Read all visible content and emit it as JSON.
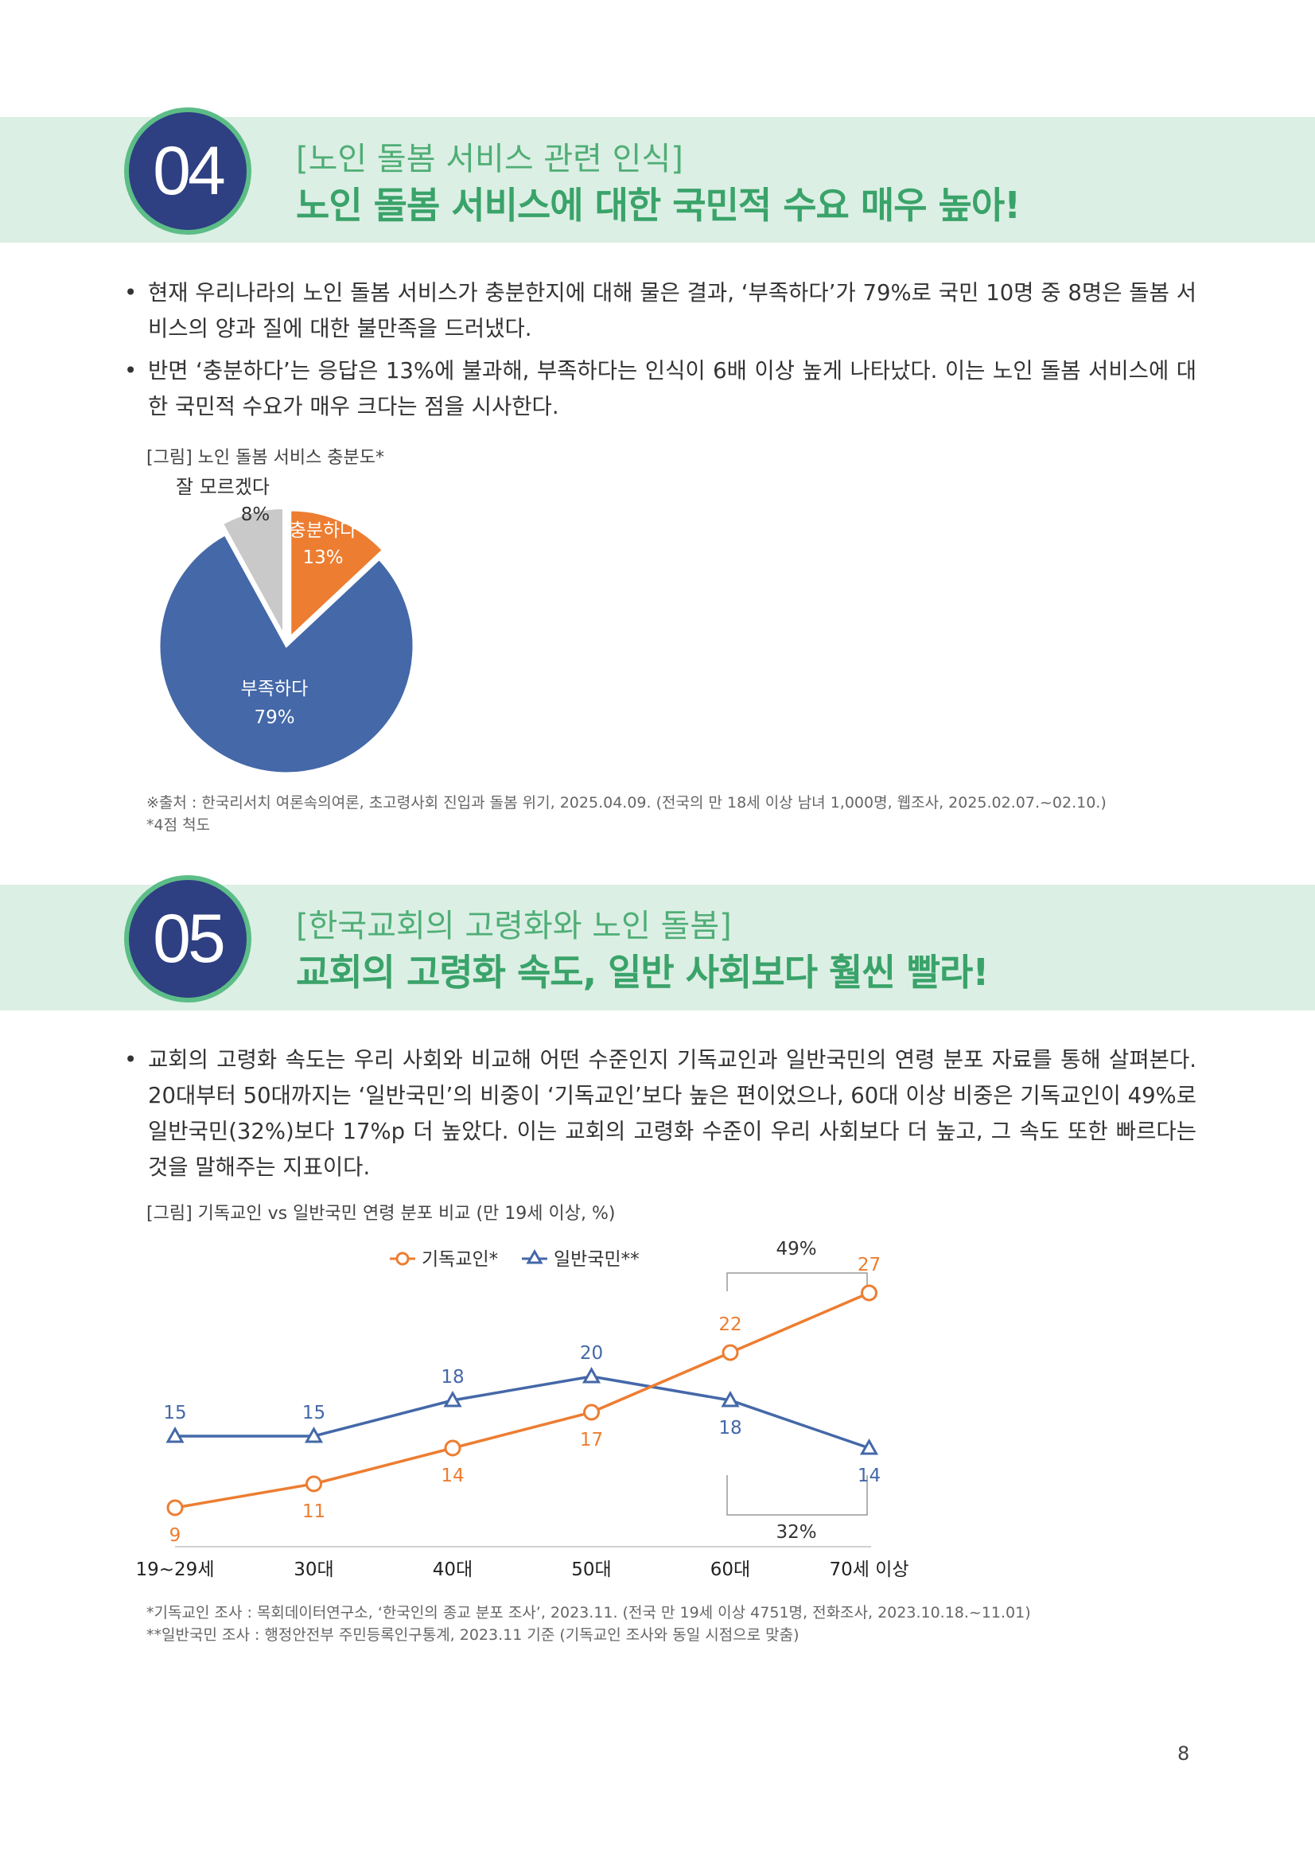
{
  "colors": {
    "band": "#dcefe4",
    "circle": "#2e3f82",
    "circle_ring": "#5cbd87",
    "headline": "#3aa36a",
    "orange": "#ed7d31",
    "blue": "#4468a8",
    "gray": "#c9c9c9"
  },
  "section04": {
    "number": "04",
    "kicker": "[노인 돌봄 서비스 관련 인식]",
    "headline": "노인 돌봄 서비스에 대한 국민적 수요 매우 높아!",
    "bullets": [
      "현재 우리나라의 노인 돌봄 서비스가 충분한지에 대해 물은 결과, ‘부족하다’가 79%로 국민 10명 중 8명은 돌봄 서비스의 양과 질에 대한 불만족을 드러냈다.",
      "반면 ‘충분하다’는 응답은 13%에 불과해, 부족하다는 인식이 6배 이상 높게 나타났다. 이는 노인 돌봄 서비스에 대한 국민적 수요가 매우 크다는 점을 시사한다."
    ],
    "figure_caption": "[그림] 노인 돌봄 서비스 충분도*",
    "source_note": "※출처 : 한국리서치 여론속의여론, 초고령사회 진입과 돌봄 위기, 2025.04.09. (전국의 만 18세 이상 남녀 1,000명, 웹조사, 2025.02.07.~02.10.)",
    "scale_note": "*4점 척도"
  },
  "section05": {
    "number": "05",
    "kicker": "[한국교회의 고령화와 노인 돌봄]",
    "headline": "교회의 고령화 속도, 일반 사회보다 훨씬 빨라!",
    "bullets": [
      "교회의 고령화 속도는 우리 사회와 비교해 어떤 수준인지 기독교인과 일반국민의 연령 분포 자료를 통해 살펴본다. 20대부터 50대까지는 ‘일반국민’의 비중이 ‘기독교인’보다 높은 편이었으나, 60대 이상 비중은 기독교인이 49%로 일반국민(32%)보다 17%p 더 높았다. 이는 교회의 고령화 수준이 우리 사회보다 더 높고, 그 속도 또한 빠르다는 것을 말해주는 지표이다."
    ],
    "figure_caption": "[그림] 기독교인 vs 일반국민 연령 분포 비교 (만 19세 이상, %)",
    "source_note_1": "*기독교인 조사 : 목회데이터연구소, ‘한국인의 종교 분포 조사’, 2023.11. (전국 만 19세 이상 4751명, 전화조사, 2023.10.18.~11.01)",
    "source_note_2": "**일반국민 조사 : 행정안전부 주민등록인구통계, 2023.11 기준 (기독교인 조사와 동일 시점으로 맞춤)"
  },
  "page_number": "8",
  "chart_data": [
    {
      "type": "pie",
      "title": "",
      "slices": [
        {
          "label": "충분하다",
          "value": 13,
          "value_label": "13%",
          "color": "#ed7d31"
        },
        {
          "label": "부족하다",
          "value": 79,
          "value_label": "79%",
          "color": "#4468a8"
        },
        {
          "label": "잘 모르겠다",
          "value": 8,
          "value_label": "8%",
          "color": "#c9c9c9"
        }
      ],
      "legend": "none"
    },
    {
      "type": "line",
      "title": "",
      "categories": [
        "19~29세",
        "30대",
        "40대",
        "50대",
        "60대",
        "70세 이상"
      ],
      "series": [
        {
          "name": "기독교인*",
          "values": [
            9,
            11,
            14,
            17,
            22,
            27
          ],
          "color": "#ed7d31",
          "marker": "circle"
        },
        {
          "name": "일반국민**",
          "values": [
            15,
            15,
            18,
            20,
            18,
            14
          ],
          "color": "#4468a8",
          "marker": "triangle"
        }
      ],
      "annotations": [
        {
          "text": "49%",
          "series": "기독교인*",
          "span": [
            "60대",
            "70세 이상"
          ]
        },
        {
          "text": "32%",
          "series": "일반국민**",
          "span": [
            "60대",
            "70세 이상"
          ]
        }
      ],
      "ylim": [
        6,
        30
      ],
      "legend": "top-center",
      "grid": false
    }
  ]
}
